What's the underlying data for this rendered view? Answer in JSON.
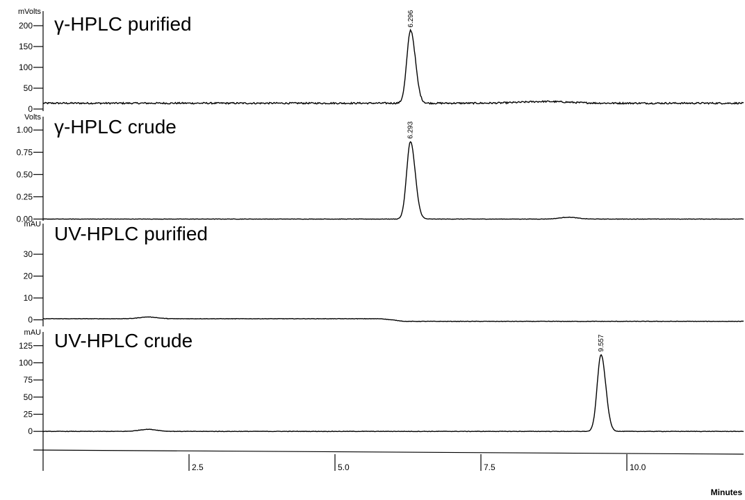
{
  "chart_data": {
    "type": "line",
    "xlabel": "Minutes",
    "xlim": [
      0,
      12
    ],
    "xticks": [
      2.5,
      5.0,
      7.5,
      10.0
    ],
    "xtick_labels": [
      "2.5",
      "5.0",
      "7.5",
      "10.0"
    ],
    "panels": [
      {
        "title": "γ-HPLC purified",
        "unit": "mVolts",
        "ylim": [
          -5,
          235
        ],
        "yticks": [
          0,
          50,
          100,
          150,
          200
        ],
        "ytick_labels": [
          "0",
          "50",
          "100",
          "150",
          "200"
        ],
        "baseline": 14,
        "peaks": [
          {
            "x": 6.296,
            "height": 175,
            "width": 0.065,
            "label": "6.296"
          }
        ],
        "bumps": [
          {
            "x": 8.6,
            "height": 4,
            "width": 0.4
          }
        ]
      },
      {
        "title": "γ-HPLC crude",
        "unit": "Volts",
        "ylim": [
          -0.02,
          1.15
        ],
        "yticks": [
          0.0,
          0.25,
          0.5,
          0.75,
          1.0
        ],
        "ytick_labels": [
          "0.00",
          "0.25",
          "0.50",
          "0.75",
          "1.00"
        ],
        "baseline": 0.0,
        "peaks": [
          {
            "x": 6.293,
            "height": 0.87,
            "width": 0.065,
            "label": "6.293"
          }
        ],
        "bumps": [
          {
            "x": 9.0,
            "height": 0.02,
            "width": 0.15
          }
        ]
      },
      {
        "title": "UV-HPLC purified",
        "unit": "mAU",
        "ylim": [
          -3,
          44
        ],
        "yticks": [
          0,
          10,
          20,
          30
        ],
        "ytick_labels": [
          "0",
          "10",
          "20",
          "30"
        ],
        "baseline": 0.5,
        "peaks": [],
        "bumps": [
          {
            "x": 1.8,
            "height": 0.8,
            "width": 0.15
          }
        ]
      },
      {
        "title": "UV-HPLC crude",
        "unit": "mAU",
        "ylim": [
          -15,
          145
        ],
        "yticks": [
          0,
          25,
          50,
          75,
          100,
          125
        ],
        "ytick_labels": [
          "0",
          "25",
          "50",
          "75",
          "100",
          "125"
        ],
        "baseline": 0,
        "peaks": [
          {
            "x": 9.557,
            "height": 112,
            "width": 0.065,
            "label": "9.557"
          }
        ],
        "bumps": [
          {
            "x": 1.8,
            "height": 3,
            "width": 0.15
          }
        ]
      }
    ]
  }
}
